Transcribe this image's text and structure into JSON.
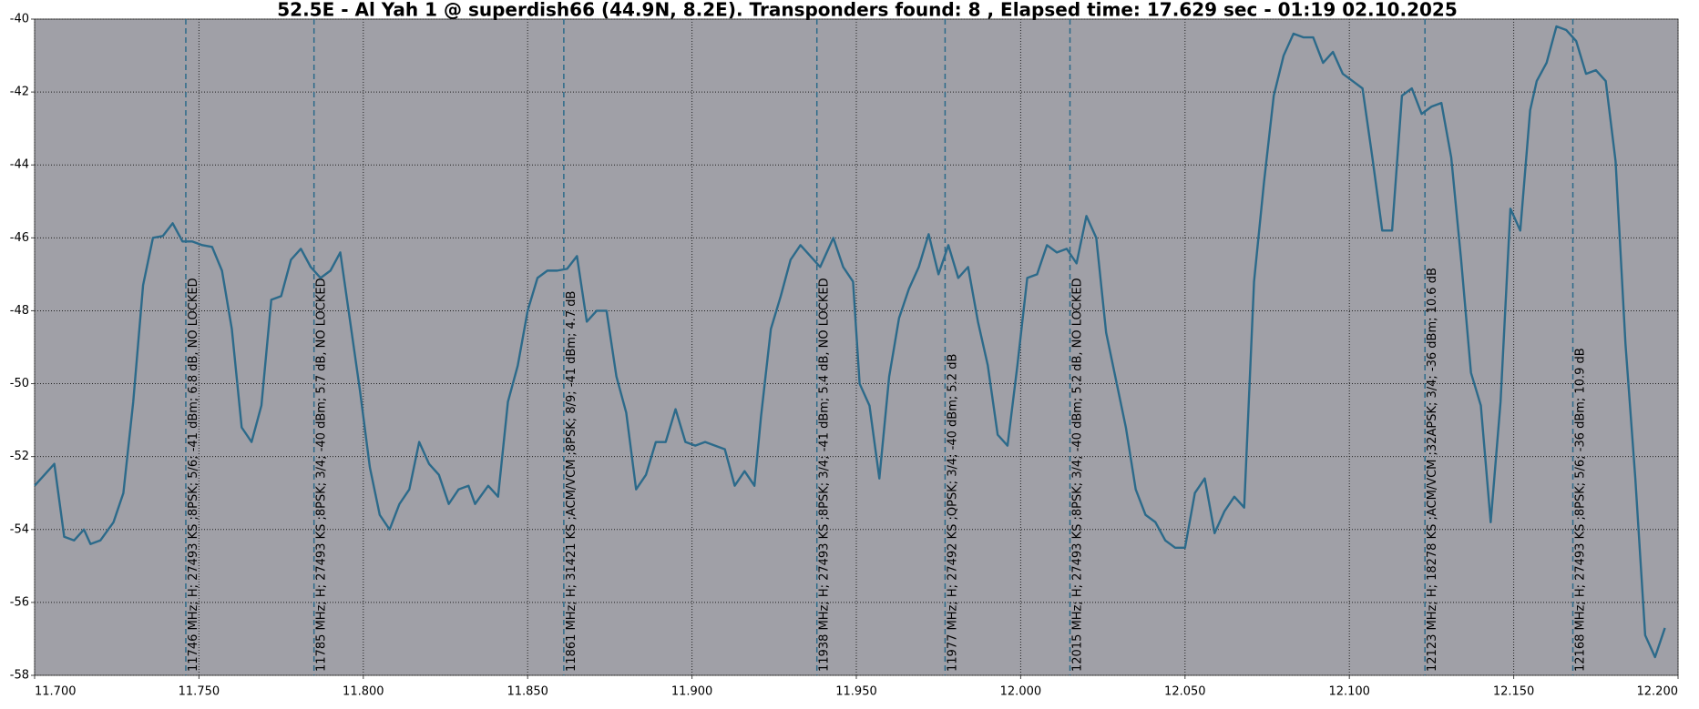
{
  "chart_data": {
    "type": "line",
    "title": "52.5E - Al Yah 1 @ superdish66 (44.9N, 8.2E). Transponders found: 8 , Elapsed time: 17.629 sec - 01:19 02.10.2025",
    "x": [
      11.7,
      11.703,
      11.706,
      11.709,
      11.712,
      11.715,
      11.717,
      11.72,
      11.724,
      11.727,
      11.73,
      11.733,
      11.736,
      11.739,
      11.742,
      11.745,
      11.748,
      11.751,
      11.754,
      11.757,
      11.76,
      11.763,
      11.766,
      11.769,
      11.772,
      11.775,
      11.778,
      11.781,
      11.784,
      11.787,
      11.79,
      11.793,
      11.796,
      11.799,
      11.802,
      11.805,
      11.808,
      11.811,
      11.814,
      11.817,
      11.82,
      11.823,
      11.826,
      11.829,
      11.832,
      11.834,
      11.838,
      11.841,
      11.844,
      11.847,
      11.85,
      11.853,
      11.856,
      11.859,
      11.862,
      11.865,
      11.868,
      11.871,
      11.874,
      11.877,
      11.88,
      11.883,
      11.886,
      11.889,
      11.892,
      11.895,
      11.898,
      11.901,
      11.904,
      11.907,
      11.91,
      11.913,
      11.916,
      11.919,
      11.921,
      11.924,
      11.927,
      11.93,
      11.933,
      11.936,
      11.939,
      11.943,
      11.946,
      11.949,
      11.951,
      11.954,
      11.957,
      11.96,
      11.963,
      11.966,
      11.969,
      11.972,
      11.975,
      11.978,
      11.981,
      11.984,
      11.987,
      11.99,
      11.993,
      11.996,
      11.999,
      12.002,
      12.005,
      12.008,
      12.011,
      12.014,
      12.017,
      12.02,
      12.023,
      12.026,
      12.029,
      12.032,
      12.035,
      12.038,
      12.041,
      12.044,
      12.047,
      12.05,
      12.053,
      12.056,
      12.059,
      12.062,
      12.065,
      12.068,
      12.071,
      12.074,
      12.077,
      12.08,
      12.083,
      12.086,
      12.089,
      12.092,
      12.095,
      12.098,
      12.101,
      12.104,
      12.107,
      12.11,
      12.113,
      12.116,
      12.119,
      12.122,
      12.125,
      12.128,
      12.131,
      12.134,
      12.137,
      12.14,
      12.143,
      12.146,
      12.149,
      12.152,
      12.155,
      12.157,
      12.16,
      12.163,
      12.166,
      12.169,
      12.172,
      12.175,
      12.178,
      12.181,
      12.184,
      12.187,
      12.19,
      12.193,
      12.196
    ],
    "values": [
      -52.8,
      -52.5,
      -52.2,
      -54.2,
      -54.3,
      -54.0,
      -54.4,
      -54.3,
      -53.8,
      -53.0,
      -50.5,
      -47.3,
      -46.0,
      -45.95,
      -45.6,
      -46.1,
      -46.1,
      -46.2,
      -46.25,
      -46.9,
      -48.5,
      -51.2,
      -51.6,
      -50.6,
      -47.7,
      -47.6,
      -46.6,
      -46.3,
      -46.8,
      -47.1,
      -46.9,
      -46.4,
      -48.3,
      -50.2,
      -52.3,
      -53.6,
      -54.0,
      -53.3,
      -52.9,
      -51.6,
      -52.2,
      -52.5,
      -53.3,
      -52.9,
      -52.8,
      -53.3,
      -52.8,
      -53.1,
      -50.5,
      -49.5,
      -48.0,
      -47.1,
      -46.9,
      -46.9,
      -46.85,
      -46.5,
      -48.3,
      -48.0,
      -48.0,
      -49.8,
      -50.8,
      -52.9,
      -52.5,
      -51.6,
      -51.6,
      -50.7,
      -51.6,
      -51.7,
      -51.6,
      -51.7,
      -51.8,
      -52.8,
      -52.4,
      -52.8,
      -50.9,
      -48.5,
      -47.6,
      -46.6,
      -46.2,
      -46.5,
      -46.8,
      -46.0,
      -46.8,
      -47.2,
      -50.0,
      -50.6,
      -52.6,
      -49.8,
      -48.2,
      -47.4,
      -46.8,
      -45.9,
      -47.0,
      -46.2,
      -47.1,
      -46.8,
      -48.3,
      -49.5,
      -51.4,
      -51.7,
      -49.5,
      -47.1,
      -47.0,
      -46.2,
      -46.4,
      -46.3,
      -46.7,
      -45.4,
      -46.0,
      -48.6,
      -49.9,
      -51.2,
      -52.9,
      -53.6,
      -53.8,
      -54.3,
      -54.5,
      -54.5,
      -53.0,
      -52.6,
      -54.1,
      -53.5,
      -53.1,
      -53.4,
      -47.2,
      -44.5,
      -42.1,
      -41.0,
      -40.4,
      -40.5,
      -40.5,
      -41.2,
      -40.9,
      -41.5,
      -41.7,
      -41.9,
      -43.8,
      -45.8,
      -45.8,
      -42.1,
      -41.9,
      -42.6,
      -42.4,
      -42.3,
      -43.8,
      -46.6,
      -49.7,
      -50.6,
      -53.8,
      -50.5,
      -45.2,
      -45.8,
      -42.5,
      -41.7,
      -41.2,
      -40.2,
      -40.3,
      -40.6,
      -41.5,
      -41.4,
      -41.7,
      -43.9,
      -48.9,
      -52.6,
      -56.9,
      -57.5,
      -56.7
    ],
    "color": "#2c6a8a",
    "xlim": [
      11.7,
      12.2
    ],
    "xticks": [
      {
        "value": 11.7,
        "label": "11.700"
      },
      {
        "value": 11.75,
        "label": "11.750"
      },
      {
        "value": 11.8,
        "label": "11.800"
      },
      {
        "value": 11.85,
        "label": "11.850"
      },
      {
        "value": 11.9,
        "label": "11.900"
      },
      {
        "value": 11.95,
        "label": "11.950"
      },
      {
        "value": 12.0,
        "label": "12.000"
      },
      {
        "value": 12.05,
        "label": "12.050"
      },
      {
        "value": 12.1,
        "label": "12.100"
      },
      {
        "value": 12.15,
        "label": "12.150"
      },
      {
        "value": 12.2,
        "label": "12.200"
      }
    ],
    "ylim": [
      -58,
      -40
    ],
    "yticks": [
      -40,
      -42,
      -44,
      -46,
      -48,
      -50,
      -52,
      -54,
      -56,
      -58
    ],
    "grid": true,
    "markers": [
      {
        "x": 11.746,
        "label": "11746 MHz; H; 27493 KS ;8PSK; 5/6; -41 dBm; 6.8 dB, NO LOCKED"
      },
      {
        "x": 11.785,
        "label": "11785 MHz; H; 27493 KS ;8PSK; 3/4; -40 dBm; 5.7 dB, NO LOCKED"
      },
      {
        "x": 11.861,
        "label": "11861 MHz; H; 31421 KS ;ACM/VCM ;8PSK; 8/9; -41 dBm; 4.7 dB"
      },
      {
        "x": 11.938,
        "label": "11938 MHz; H; 27493 KS ;8PSK; 3/4; -41 dBm; 5.4 dB, NO LOCKED"
      },
      {
        "x": 11.977,
        "label": "11977 MHz; H; 27492 KS ;QPSK; 3/4; -40 dBm; 5.2 dB"
      },
      {
        "x": 12.015,
        "label": "12015 MHz; H; 27493 KS ;8PSK; 3/4; -40 dBm; 5.2 dB, NO LOCKED"
      },
      {
        "x": 12.123,
        "label": "12123 MHz; H; 18278 KS ;ACM/VCM ;32APSK; 3/4; -36 dBm; 10.6 dB"
      },
      {
        "x": 12.168,
        "label": "12168 MHz; H; 27493 KS ;8PSK; 5/6; -36 dBm; 10.9 dB"
      }
    ]
  }
}
